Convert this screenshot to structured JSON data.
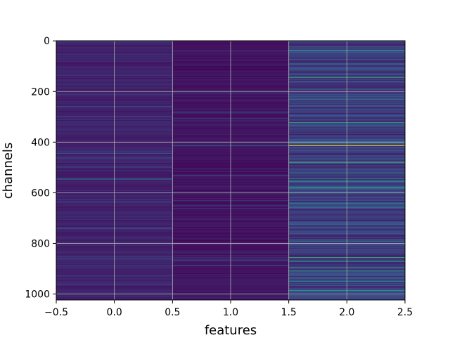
{
  "chart_data": {
    "type": "heatmap",
    "title": "",
    "xlabel": "features",
    "ylabel": "channels",
    "xlim": [
      -0.5,
      2.5
    ],
    "ylim": [
      1023.5,
      -0.5
    ],
    "y_axis_inverted": true,
    "grid": true,
    "columns": [
      0,
      1,
      2
    ],
    "rows": 1024,
    "colormap": "viridis",
    "x_ticks": [
      {
        "value": -0.5,
        "label": "−0.5"
      },
      {
        "value": 0.0,
        "label": "0.0"
      },
      {
        "value": 0.5,
        "label": "0.5"
      },
      {
        "value": 1.0,
        "label": "1.0"
      },
      {
        "value": 1.5,
        "label": "1.5"
      },
      {
        "value": 2.0,
        "label": "2.0"
      },
      {
        "value": 2.5,
        "label": "2.5"
      }
    ],
    "y_ticks": [
      {
        "value": 0,
        "label": "0"
      },
      {
        "value": 200,
        "label": "200"
      },
      {
        "value": 400,
        "label": "400"
      },
      {
        "value": 600,
        "label": "600"
      },
      {
        "value": 800,
        "label": "800"
      },
      {
        "value": 1000,
        "label": "1000"
      }
    ],
    "column_base_value": [
      0.1,
      0.06,
      0.18
    ],
    "highlighted_channels": [
      {
        "column": 0,
        "channel": 545,
        "value": 0.35
      },
      {
        "column": 0,
        "channel": 443,
        "value": 0.25
      },
      {
        "column": 0,
        "channel": 740,
        "value": 0.22
      },
      {
        "column": 0,
        "channel": 258,
        "value": 0.2
      },
      {
        "column": 0,
        "channel": 925,
        "value": 0.2
      },
      {
        "column": 1,
        "channel": 412,
        "value": 0.3
      },
      {
        "column": 1,
        "channel": 885,
        "value": 0.25
      },
      {
        "column": 1,
        "channel": 650,
        "value": 0.15
      },
      {
        "column": 2,
        "channel": 412,
        "value": 0.95
      },
      {
        "column": 2,
        "channel": 36,
        "value": 0.55
      },
      {
        "column": 2,
        "channel": 143,
        "value": 0.6
      },
      {
        "column": 2,
        "channel": 322,
        "value": 0.55
      },
      {
        "column": 2,
        "channel": 478,
        "value": 0.65
      },
      {
        "column": 2,
        "channel": 580,
        "value": 0.55
      },
      {
        "column": 2,
        "channel": 598,
        "value": 0.5
      },
      {
        "column": 2,
        "channel": 855,
        "value": 0.6
      },
      {
        "column": 2,
        "channel": 870,
        "value": 0.5
      },
      {
        "column": 2,
        "channel": 908,
        "value": 0.55
      },
      {
        "column": 2,
        "channel": 948,
        "value": 0.5
      },
      {
        "column": 2,
        "channel": 985,
        "value": 0.5
      },
      {
        "column": 2,
        "channel": 90,
        "value": 0.4
      },
      {
        "column": 2,
        "channel": 230,
        "value": 0.35
      },
      {
        "column": 2,
        "channel": 520,
        "value": 0.4
      },
      {
        "column": 2,
        "channel": 640,
        "value": 0.4
      },
      {
        "column": 2,
        "channel": 790,
        "value": 0.35
      }
    ]
  }
}
